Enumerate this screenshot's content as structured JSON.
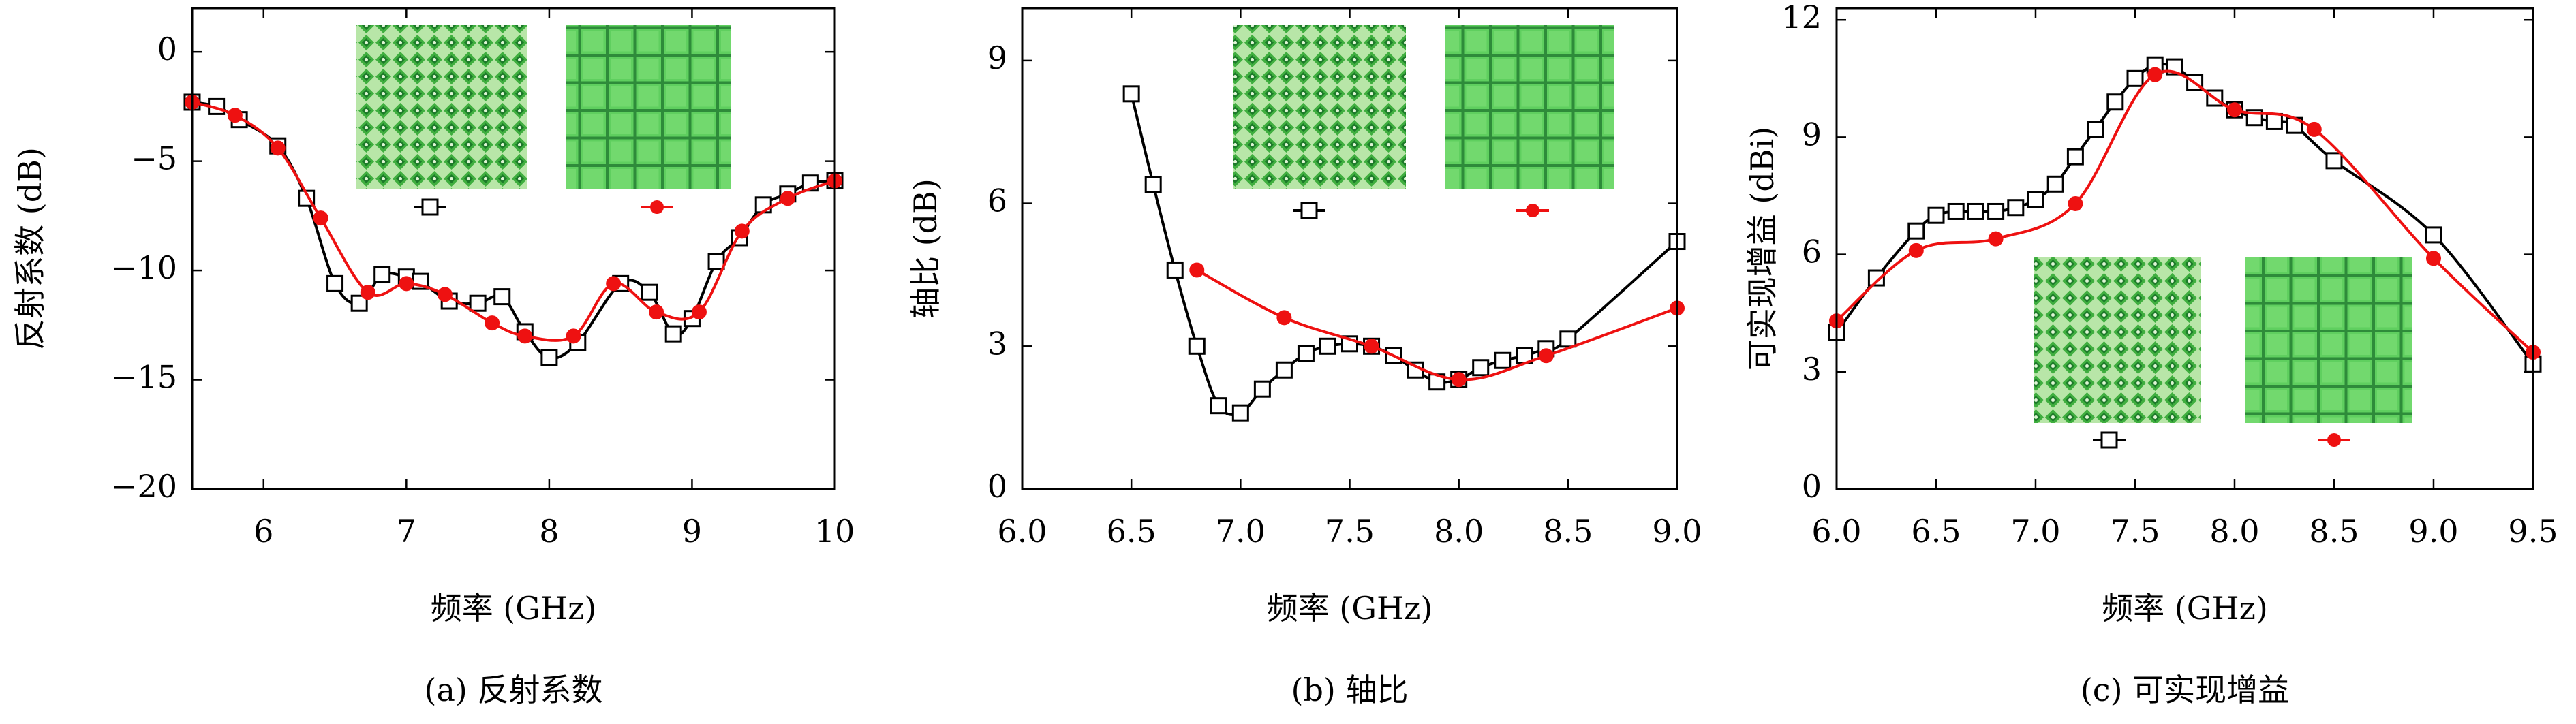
{
  "chart_data": [
    {
      "type": "line",
      "title": "(a) 反射系数",
      "x_label": "频率 (GHz)",
      "y_label": "反射系数 (dB)",
      "xlim": [
        5.5,
        10
      ],
      "ylim": [
        -20,
        2
      ],
      "xticks": [
        6,
        7,
        8,
        9,
        10
      ],
      "yticks": [
        0,
        {
          "value": -5,
          "label": "−5"
        },
        {
          "value": -10,
          "label": "−10"
        },
        {
          "value": -15,
          "label": "−15"
        },
        {
          "value": -20,
          "label": "−20"
        }
      ],
      "series": [
        {
          "color": "#000000",
          "marker": "square",
          "x": [
            5.5,
            5.67,
            5.83,
            6.1,
            6.3,
            6.5,
            6.67,
            6.83,
            7.0,
            7.1,
            7.3,
            7.5,
            7.67,
            7.83,
            8.0,
            8.2,
            8.5,
            8.7,
            8.87,
            9.0,
            9.17,
            9.33,
            9.5,
            9.67,
            9.83,
            10
          ],
          "values": [
            -2.3,
            -2.5,
            -3.1,
            -4.3,
            -6.7,
            -10.6,
            -11.5,
            -10.2,
            -10.3,
            -10.5,
            -11.4,
            -11.5,
            -11.2,
            -12.8,
            -14,
            -13.3,
            -10.6,
            -11,
            -12.9,
            -12.2,
            -9.6,
            -8.5,
            -7,
            -6.5,
            -6,
            -5.9
          ]
        },
        {
          "color": "#ee1111",
          "marker": "circle",
          "x": [
            5.5,
            5.8,
            6.1,
            6.4,
            6.73,
            7.0,
            7.27,
            7.6,
            7.83,
            8.17,
            8.45,
            8.75,
            9.05,
            9.35,
            9.67,
            10
          ],
          "values": [
            -2.3,
            -2.9,
            -4.4,
            -7.6,
            -11,
            -10.6,
            -11.1,
            -12.4,
            -13,
            -13,
            -10.6,
            -11.9,
            -11.9,
            -8.2,
            -6.7,
            -5.9
          ]
        }
      ]
    },
    {
      "type": "line",
      "title": "(b) 轴比",
      "x_label": "频率 (GHz)",
      "y_label": "轴比 (dB)",
      "xlim": [
        6,
        9
      ],
      "ylim": [
        0,
        10.1
      ],
      "xticks": [
        {
          "value": 6,
          "label": "6.0"
        },
        {
          "value": 6.5,
          "label": "6.5"
        },
        {
          "value": 7,
          "label": "7.0"
        },
        {
          "value": 7.5,
          "label": "7.5"
        },
        {
          "value": 8,
          "label": "8.0"
        },
        {
          "value": 8.5,
          "label": "8.5"
        },
        {
          "value": 9,
          "label": "9.0"
        }
      ],
      "yticks": [
        0,
        3,
        6,
        9
      ],
      "series": [
        {
          "color": "#000000",
          "marker": "square",
          "x": [
            6.5,
            6.6,
            6.7,
            6.8,
            6.9,
            7.0,
            7.1,
            7.2,
            7.3,
            7.4,
            7.5,
            7.6,
            7.7,
            7.8,
            7.9,
            8.0,
            8.1,
            8.2,
            8.3,
            8.4,
            8.5,
            9.0
          ],
          "values": [
            8.3,
            6.4,
            4.6,
            3.0,
            1.75,
            1.6,
            2.1,
            2.5,
            2.85,
            3.0,
            3.05,
            3.0,
            2.8,
            2.5,
            2.25,
            2.3,
            2.55,
            2.7,
            2.8,
            2.95,
            3.15,
            5.2
          ]
        },
        {
          "color": "#ee1111",
          "marker": "circle",
          "x": [
            6.8,
            7.2,
            7.6,
            8.0,
            8.4,
            9.0
          ],
          "values": [
            4.6,
            3.6,
            3.0,
            2.3,
            2.8,
            3.8
          ]
        }
      ]
    },
    {
      "type": "line",
      "title": "(c) 可实现增益",
      "x_label": "频率 (GHz)",
      "y_label": "可实现增益 (dBi)",
      "xlim": [
        6,
        9.5
      ],
      "ylim": [
        0,
        12.3
      ],
      "xticks": [
        {
          "value": 6,
          "label": "6.0"
        },
        {
          "value": 6.5,
          "label": "6.5"
        },
        {
          "value": 7,
          "label": "7.0"
        },
        {
          "value": 7.5,
          "label": "7.5"
        },
        {
          "value": 8,
          "label": "8.0"
        },
        {
          "value": 8.5,
          "label": "8.5"
        },
        {
          "value": 9,
          "label": "9.0"
        },
        {
          "value": 9.5,
          "label": "9.5"
        }
      ],
      "yticks": [
        0,
        3,
        6,
        9,
        12
      ],
      "series": [
        {
          "color": "#000000",
          "marker": "square",
          "x": [
            6.0,
            6.2,
            6.4,
            6.5,
            6.6,
            6.7,
            6.8,
            6.9,
            7.0,
            7.1,
            7.2,
            7.3,
            7.4,
            7.5,
            7.6,
            7.7,
            7.8,
            7.9,
            8.0,
            8.1,
            8.2,
            8.3,
            8.5,
            9.0,
            9.5
          ],
          "values": [
            4.0,
            5.4,
            6.6,
            7.0,
            7.1,
            7.1,
            7.1,
            7.2,
            7.4,
            7.8,
            8.5,
            9.2,
            9.9,
            10.5,
            10.85,
            10.8,
            10.4,
            10.0,
            9.7,
            9.5,
            9.4,
            9.3,
            8.4,
            6.5,
            3.2
          ]
        },
        {
          "color": "#ee1111",
          "marker": "circle",
          "x": [
            6.0,
            6.4,
            6.8,
            7.2,
            7.6,
            8.0,
            8.4,
            9.0,
            9.5
          ],
          "values": [
            4.3,
            6.1,
            6.4,
            7.3,
            10.6,
            9.7,
            9.2,
            5.9,
            3.5
          ]
        }
      ]
    }
  ]
}
